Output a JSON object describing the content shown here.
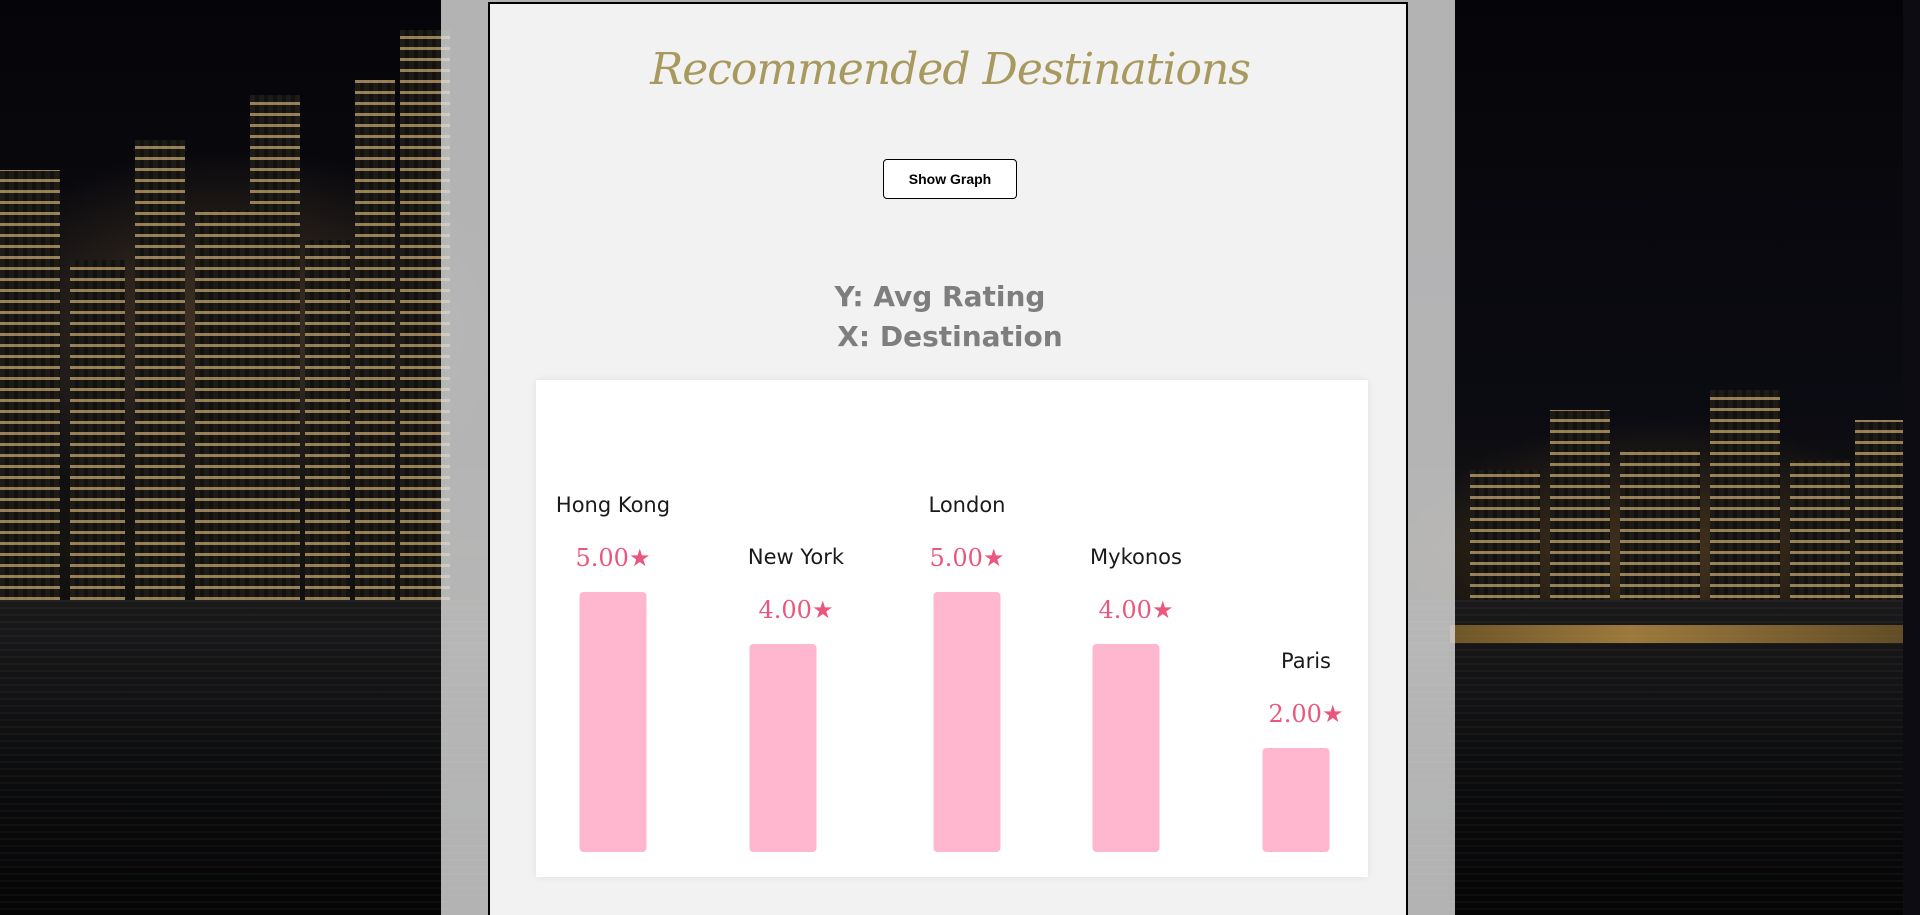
{
  "page": {
    "title": "Recommended Destinations",
    "show_graph_label": "Show Graph",
    "y_caption": "Y: Avg Rating",
    "x_caption": "X: Destination"
  },
  "colors": {
    "bar": "#ffb7d0",
    "value_label": "#e9577f",
    "title": "#a89a5e"
  },
  "chart_data": {
    "type": "bar",
    "categories": [
      "Hong Kong",
      "New York",
      "London",
      "Mykonos",
      "Paris"
    ],
    "values": [
      5.0,
      4.0,
      5.0,
      4.0,
      2.0
    ],
    "value_labels": [
      "5.00★",
      "4.00★",
      "5.00★",
      "4.00★",
      "2.00★"
    ],
    "title": "",
    "xlabel": "X: Destination",
    "ylabel": "Y: Avg Rating",
    "ylim": [
      0,
      5
    ],
    "grid": false,
    "legend": "none"
  }
}
